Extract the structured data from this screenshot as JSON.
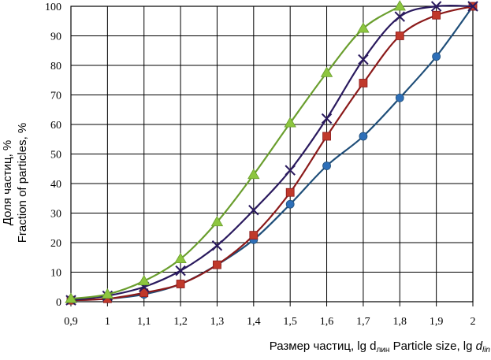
{
  "chart_data": {
    "type": "line",
    "x": [
      0.9,
      1.0,
      1.1,
      1.2,
      1.3,
      1.4,
      1.5,
      1.6,
      1.7,
      1.8,
      1.9,
      2.0
    ],
    "x_tick_labels": [
      "0,9",
      "1",
      "1,1",
      "1,2",
      "1,3",
      "1,4",
      "1,5",
      "1,6",
      "1,7",
      "1,8",
      "1,9",
      "2"
    ],
    "y_ticks": [
      0,
      10,
      20,
      30,
      40,
      50,
      60,
      70,
      80,
      90,
      100
    ],
    "xlim": [
      0.9,
      2.0
    ],
    "ylim": [
      0,
      100
    ],
    "grid": true,
    "ylabel_line1": "Доля  частиц, %",
    "ylabel_line2": "Fraction of particles,  %",
    "xlabel_ru": "Размер частиц, lg d",
    "xlabel_ru_sub": "лин",
    "xlabel_en": "  Particle size, lg ",
    "xlabel_en_var": "d",
    "xlabel_en_sub": "lin",
    "series": [
      {
        "marker": "circle",
        "color": "#2e6fb8",
        "line": "#1f4e79",
        "x": [
          0.9,
          1.0,
          1.1,
          1.2,
          1.3,
          1.4,
          1.5,
          1.6,
          1.7,
          1.8,
          1.9,
          2.0
        ],
        "y": [
          0.5,
          1.0,
          2.5,
          6.0,
          12.5,
          21.0,
          33.0,
          46.0,
          56.0,
          69.0,
          83.0,
          100.0
        ]
      },
      {
        "marker": "square",
        "color": "#c0392b",
        "line": "#8b1a1a",
        "x": [
          0.9,
          1.0,
          1.1,
          1.2,
          1.3,
          1.4,
          1.5,
          1.6,
          1.7,
          1.8,
          1.9,
          2.0
        ],
        "y": [
          0.5,
          1.0,
          3.0,
          6.0,
          12.5,
          22.5,
          37.0,
          56.0,
          74.0,
          90.0,
          97.0,
          100.0
        ]
      },
      {
        "marker": "cross",
        "color": "#2a1a5e",
        "line": "#2a1a5e",
        "x": [
          0.9,
          1.0,
          1.1,
          1.2,
          1.3,
          1.4,
          1.5,
          1.6,
          1.7,
          1.8,
          1.9,
          2.0
        ],
        "y": [
          0.5,
          2.0,
          5.0,
          10.5,
          19.0,
          31.0,
          44.5,
          62.0,
          82.0,
          96.5,
          100.0,
          100.0
        ]
      },
      {
        "marker": "triangle",
        "color": "#8dc63f",
        "line": "#6a9e2e",
        "x": [
          0.9,
          1.0,
          1.1,
          1.2,
          1.3,
          1.4,
          1.5,
          1.6,
          1.7,
          1.8
        ],
        "y": [
          1.0,
          2.5,
          7.0,
          14.5,
          27.0,
          43.0,
          60.5,
          77.5,
          92.5,
          100.0
        ]
      }
    ]
  }
}
